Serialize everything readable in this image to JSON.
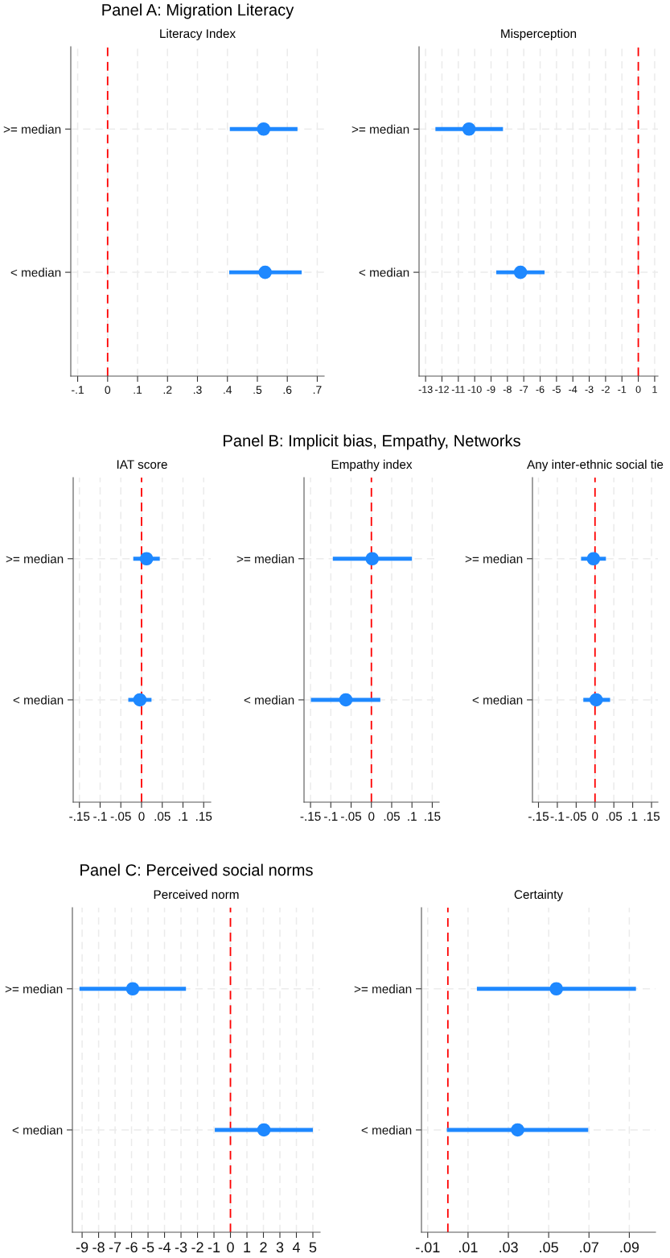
{
  "chart_data": [
    {
      "type": "scatter",
      "orientation": "horizontal",
      "subtitle": "Panel A: Migration Literacy",
      "title": "Literacy Index",
      "categories": [
        ">= median",
        "< median"
      ],
      "values": [
        0.521,
        0.526
      ],
      "errors": [
        [
          0.408,
          0.634
        ],
        [
          0.406,
          0.648
        ]
      ],
      "color": "#1e88ff",
      "marker": "circle",
      "xlim": [
        -0.123,
        0.723
      ],
      "xticks": [
        {
          "value": -0.1,
          "label": "-.1"
        },
        0,
        {
          "value": 0.1,
          "label": ".1"
        },
        {
          "value": 0.2,
          "label": ".2"
        },
        {
          "value": 0.3,
          "label": ".3"
        },
        {
          "value": 0.4,
          "label": ".4"
        },
        {
          "value": 0.5,
          "label": ".5"
        },
        {
          "value": 0.6,
          "label": ".6"
        },
        {
          "value": 0.7,
          "label": ".7"
        }
      ],
      "ref_lines": [
        {
          "axis": "x",
          "value": 0,
          "color": "#ff0000",
          "line_style": "dashed"
        }
      ],
      "grid": true
    },
    {
      "type": "scatter",
      "orientation": "horizontal",
      "title": "Misperception",
      "categories": [
        ">= median",
        "< median"
      ],
      "values": [
        -10.35,
        -7.2
      ],
      "errors": [
        [
          -12.4,
          -8.27
        ],
        [
          -8.68,
          -5.73
        ]
      ],
      "color": "#1e88ff",
      "marker": "circle",
      "xlim": [
        -13.4,
        1.2
      ],
      "xticks": [
        -13,
        -12,
        -11,
        -10,
        -9,
        -8,
        -7,
        -6,
        -5,
        -4,
        -3,
        -2,
        -1,
        0,
        1
      ],
      "ref_lines": [
        {
          "axis": "x",
          "value": 0,
          "color": "#ff0000",
          "line_style": "dashed"
        }
      ],
      "grid": true
    },
    {
      "type": "scatter",
      "orientation": "horizontal",
      "title": "IAT score",
      "categories": [
        ">= median",
        "< median"
      ],
      "values": [
        0.012,
        -0.004
      ],
      "errors": [
        [
          -0.02,
          0.044
        ],
        [
          -0.032,
          0.024
        ]
      ],
      "color": "#1e88ff",
      "marker": "circle",
      "xlim": [
        -0.165,
        0.167
      ],
      "xticks": [
        {
          "value": -0.15,
          "label": "-.15"
        },
        {
          "value": -0.1,
          "label": "-.1"
        },
        {
          "value": -0.05,
          "label": "-.05"
        },
        0,
        {
          "value": 0.05,
          "label": ".05"
        },
        {
          "value": 0.1,
          "label": ".1"
        },
        {
          "value": 0.15,
          "label": ".15"
        }
      ],
      "ref_lines": [
        {
          "axis": "x",
          "value": 0,
          "color": "#ff0000",
          "line_style": "dashed"
        }
      ],
      "grid": true
    },
    {
      "type": "scatter",
      "orientation": "horizontal",
      "subtitle": "Panel B: Implicit bias, Empathy, Networks",
      "title": "Empathy index",
      "categories": [
        ">= median",
        "< median"
      ],
      "values": [
        0.002,
        -0.063
      ],
      "errors": [
        [
          -0.095,
          0.1
        ],
        [
          -0.149,
          0.022
        ]
      ],
      "color": "#1e88ff",
      "marker": "circle",
      "xlim": [
        -0.166,
        0.167
      ],
      "xticks": [
        {
          "value": -0.15,
          "label": "-.15"
        },
        {
          "value": -0.1,
          "label": "-.1"
        },
        {
          "value": -0.05,
          "label": "-.05"
        },
        0,
        {
          "value": 0.05,
          "label": ".05"
        },
        {
          "value": 0.1,
          "label": ".1"
        },
        {
          "value": 0.15,
          "label": ".15"
        }
      ],
      "ref_lines": [
        {
          "axis": "x",
          "value": 0,
          "color": "#ff0000",
          "line_style": "dashed"
        }
      ],
      "grid": true
    },
    {
      "type": "scatter",
      "orientation": "horizontal",
      "title": "Any inter-ethnic social tie",
      "categories": [
        ">= median",
        "< median"
      ],
      "values": [
        -0.004,
        0.003
      ],
      "errors": [
        [
          -0.037,
          0.029
        ],
        [
          -0.031,
          0.04
        ]
      ],
      "color": "#1e88ff",
      "marker": "circle",
      "xlim": [
        -0.166,
        0.167
      ],
      "xticks": [
        {
          "value": -0.15,
          "label": "-.15"
        },
        {
          "value": -0.1,
          "label": "-.1"
        },
        {
          "value": -0.05,
          "label": "-.05"
        },
        0,
        {
          "value": 0.05,
          "label": ".05"
        },
        {
          "value": 0.1,
          "label": ".1"
        },
        {
          "value": 0.15,
          "label": ".15"
        }
      ],
      "ref_lines": [
        {
          "axis": "x",
          "value": 0,
          "color": "#ff0000",
          "line_style": "dashed"
        }
      ],
      "grid": true
    },
    {
      "type": "scatter",
      "orientation": "horizontal",
      "subtitle": "Panel C: Perceived social norms",
      "title": "Perceived norm",
      "categories": [
        ">= median",
        "< median"
      ],
      "values": [
        -5.93,
        2.03
      ],
      "errors": [
        [
          -9.16,
          -2.7
        ],
        [
          -0.95,
          5.0
        ]
      ],
      "color": "#1e88ff",
      "marker": "circle",
      "xlim": [
        -9.59,
        5.44
      ],
      "xticks": [
        -9,
        -8,
        -7,
        -6,
        -5,
        -4,
        -3,
        -2,
        -1,
        0,
        1,
        2,
        3,
        4,
        5
      ],
      "ref_lines": [
        {
          "axis": "x",
          "value": 0,
          "color": "#ff0000",
          "line_style": "dashed"
        }
      ],
      "grid": true
    },
    {
      "type": "scatter",
      "orientation": "horizontal",
      "title": "Certainty",
      "categories": [
        ">= median",
        "< median"
      ],
      "values": [
        0.0538,
        0.0346
      ],
      "errors": [
        [
          0.0144,
          0.0933
        ],
        [
          -0.0005,
          0.0696
        ]
      ],
      "color": "#1e88ff",
      "marker": "circle",
      "xlim": [
        -0.0131,
        0.103
      ],
      "xticks": [
        {
          "value": -0.01,
          "label": "-.01"
        },
        {
          "value": 0.01,
          "label": ".01"
        },
        {
          "value": 0.03,
          "label": ".03"
        },
        {
          "value": 0.05,
          "label": ".05"
        },
        {
          "value": 0.07,
          "label": ".07"
        },
        {
          "value": 0.09,
          "label": ".09"
        }
      ],
      "ref_lines": [
        {
          "axis": "x",
          "value": 0,
          "color": "#ff0000",
          "line_style": "dashed"
        }
      ],
      "grid": true
    }
  ]
}
